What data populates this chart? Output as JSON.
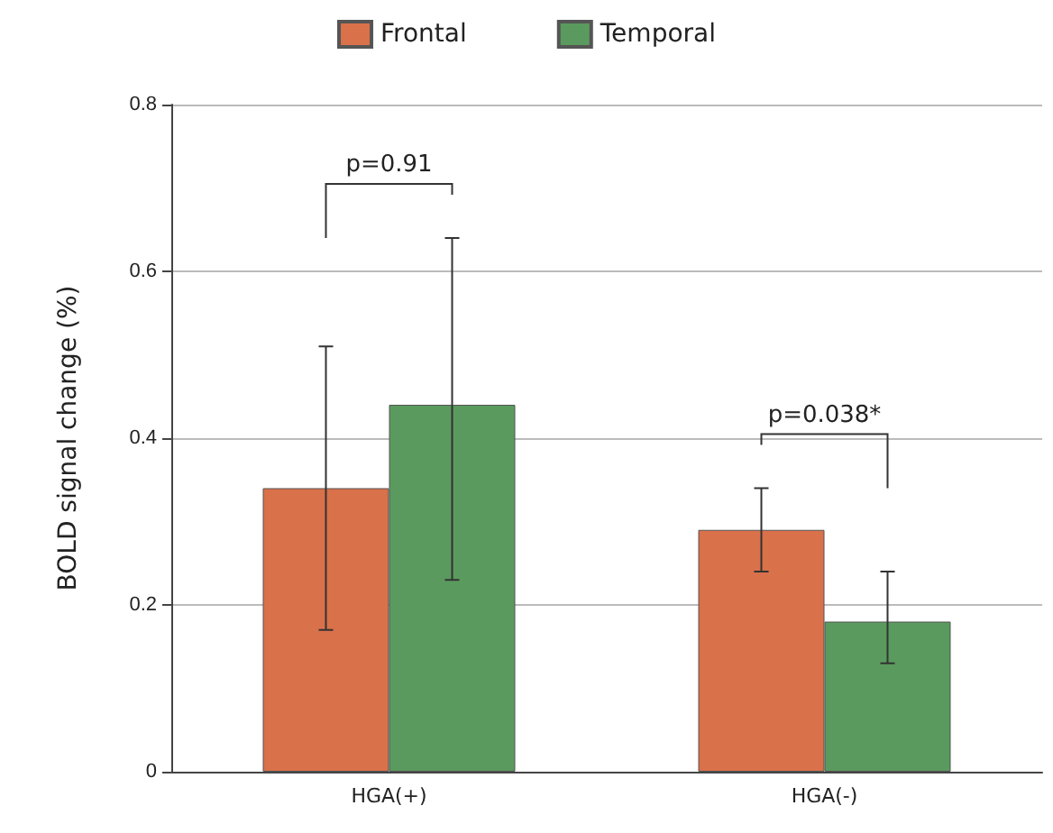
{
  "chart_data": {
    "type": "bar",
    "ylabel": "BOLD signal change (%)",
    "categories": [
      "HGA(+)",
      "HGA(-)"
    ],
    "series": [
      {
        "name": "Frontal",
        "color": "#d9714a",
        "values": [
          0.34,
          0.29
        ],
        "errors": [
          [
            0.17,
            0.51
          ],
          [
            0.24,
            0.34
          ]
        ]
      },
      {
        "name": "Temporal",
        "color": "#5a9a5e",
        "values": [
          0.44,
          0.18
        ],
        "errors": [
          [
            0.23,
            0.64
          ],
          [
            0.13,
            0.24
          ]
        ]
      }
    ],
    "ylim": [
      0,
      0.8
    ],
    "yticks": [
      0,
      0.2,
      0.4,
      0.6,
      0.8
    ],
    "grid": "y",
    "legend": "top",
    "annotations": [
      "p=0.91",
      "p=0.038*"
    ]
  }
}
